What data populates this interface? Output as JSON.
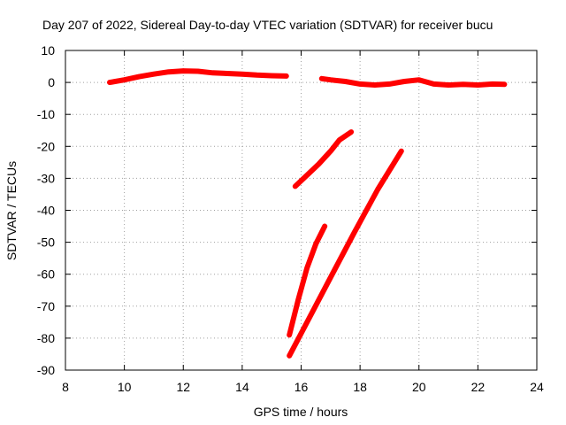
{
  "chart_data": {
    "type": "line",
    "title": "Day 207 of 2022, Sidereal Day-to-day VTEC variation (SDTVAR) for receiver bucu",
    "xlabel": "GPS time / hours",
    "ylabel": "SDTVAR / TECUs",
    "xlim": [
      8,
      24
    ],
    "ylim": [
      -90,
      10
    ],
    "xticks": [
      8,
      10,
      12,
      14,
      16,
      18,
      20,
      22,
      24
    ],
    "yticks": [
      10,
      0,
      -10,
      -20,
      -30,
      -40,
      -50,
      -60,
      -70,
      -80,
      -90
    ],
    "grid": true,
    "legend": "none",
    "line_color": "#ff0000",
    "series": [
      {
        "x": [
          9.5,
          10.0,
          10.5,
          11.0,
          11.5,
          12.0,
          12.5,
          13.0,
          13.5,
          14.0,
          14.5,
          15.0,
          15.5
        ],
        "y": [
          0.0,
          0.8,
          1.8,
          2.6,
          3.3,
          3.6,
          3.5,
          3.0,
          2.8,
          2.6,
          2.3,
          2.1,
          2.0
        ]
      },
      {
        "x": [
          16.7,
          17.0,
          17.5,
          18.0,
          18.5,
          19.0,
          19.5,
          20.0,
          20.5,
          21.0,
          21.5,
          22.0,
          22.5,
          22.9
        ],
        "y": [
          1.2,
          0.8,
          0.3,
          -0.5,
          -0.8,
          -0.5,
          0.3,
          0.8,
          -0.5,
          -0.8,
          -0.6,
          -0.8,
          -0.5,
          -0.6
        ]
      },
      {
        "x": [
          15.8,
          16.2,
          16.6,
          17.0,
          17.3,
          17.7
        ],
        "y": [
          -32.5,
          -29.0,
          -25.5,
          -21.5,
          -18.0,
          -15.5
        ]
      },
      {
        "x": [
          15.6,
          15.9,
          16.2,
          16.5,
          16.8
        ],
        "y": [
          -79.0,
          -68.0,
          -58.0,
          -50.5,
          -45.0
        ]
      },
      {
        "x": [
          15.6,
          16.2,
          17.0,
          17.8,
          18.6,
          19.4
        ],
        "y": [
          -85.5,
          -75.0,
          -61.0,
          -47.0,
          -33.5,
          -21.5
        ]
      }
    ]
  }
}
